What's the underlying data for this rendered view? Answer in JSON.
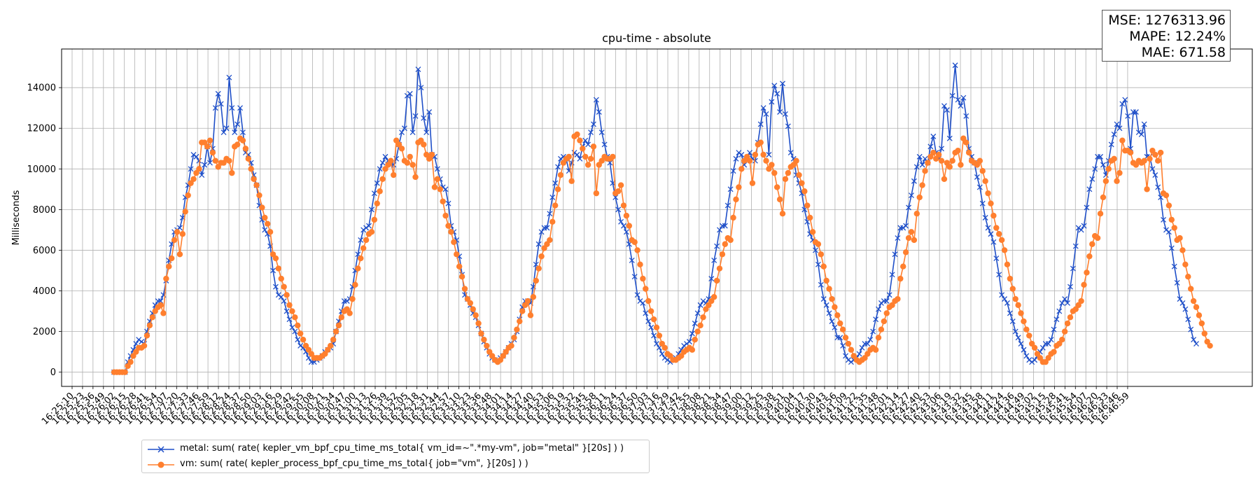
{
  "chart_data": {
    "type": "line",
    "title": "cpu-time - absolute",
    "ylabel": "Milliseconds",
    "xlabel": "",
    "ylim": [
      -700,
      15900
    ],
    "yticks": [
      0,
      2000,
      4000,
      6000,
      8000,
      10000,
      12000,
      14000
    ],
    "grid": true,
    "legend_position": "lower-left",
    "x_tick_labels": [
      "16:25:10",
      "16:25:23",
      "16:25:36",
      "16:25:49",
      "16:26:02",
      "16:26:15",
      "16:26:28",
      "16:26:41",
      "16:26:54",
      "16:27:07",
      "16:27:20",
      "16:27:33",
      "16:27:46",
      "16:27:59",
      "16:28:12",
      "16:28:24",
      "16:28:37",
      "16:28:50",
      "16:29:03",
      "16:29:16",
      "16:29:29",
      "16:29:42",
      "16:29:55",
      "16:30:08",
      "16:30:21",
      "16:30:34",
      "16:30:47",
      "16:31:00",
      "16:31:13",
      "16:31:26",
      "16:31:39",
      "16:31:52",
      "16:32:05",
      "16:32:18",
      "16:32:31",
      "16:32:44",
      "16:32:57",
      "16:33:10",
      "16:33:23",
      "16:33:36",
      "16:33:48",
      "16:34:01",
      "16:34:14",
      "16:34:27",
      "16:34:40",
      "16:34:53",
      "16:35:06",
      "16:35:19",
      "16:35:32",
      "16:35:45",
      "16:35:58",
      "16:36:11",
      "16:36:24",
      "16:36:37",
      "16:36:50",
      "16:37:03",
      "16:37:16",
      "16:37:29",
      "16:37:42",
      "16:37:55",
      "16:38:08",
      "16:38:21",
      "16:38:34",
      "16:38:47",
      "16:39:00",
      "16:39:12",
      "16:39:25",
      "16:39:38",
      "16:39:51",
      "16:40:04",
      "16:40:17",
      "16:40:30",
      "16:40:43",
      "16:40:56",
      "16:41:09",
      "16:41:22",
      "16:41:35",
      "16:41:48",
      "16:42:01",
      "16:42:14",
      "16:42:27",
      "16:42:40",
      "16:42:53",
      "16:43:06",
      "16:43:19",
      "16:43:32",
      "16:43:45",
      "16:43:58",
      "16:44:11",
      "16:44:24",
      "16:44:36",
      "16:44:49",
      "16:45:02",
      "16:45:15",
      "16:45:28",
      "16:45:41",
      "16:45:54",
      "16:46:07",
      "16:46:20",
      "16:46:33",
      "16:46:46",
      "16:46:59"
    ],
    "series": [
      {
        "name": "metal: sum( rate( kepler_vm_bpf_cpu_time_ms_total{ vm_id=~\".*my-vm\", job=\"metal\" }[20s] ) )",
        "color": "#1f4fc8",
        "marker": "x",
        "values": [
          0,
          0,
          0,
          0,
          0,
          500,
          800,
          1100,
          1400,
          1600,
          1500,
          1400,
          2000,
          2500,
          2900,
          3300,
          3500,
          3500,
          3800,
          4500,
          5500,
          6300,
          6900,
          7000,
          7100,
          7600,
          8600,
          9200,
          10000,
          10700,
          10600,
          10400,
          9700,
          10200,
          11100,
          10300,
          11000,
          13000,
          13700,
          13200,
          11800,
          12000,
          14500,
          13000,
          11800,
          12200,
          13000,
          11800,
          10800,
          10700,
          10300,
          9700,
          9200,
          8200,
          7500,
          7000,
          6800,
          6200,
          5000,
          4200,
          3800,
          3700,
          3500,
          3000,
          2600,
          2200,
          2000,
          1600,
          1300,
          1200,
          1000,
          700,
          500,
          500,
          600,
          700,
          800,
          1000,
          1100,
          1200,
          1400,
          2000,
          2500,
          3000,
          3500,
          3500,
          3600,
          4200,
          5000,
          5800,
          6500,
          7000,
          7100,
          7200,
          8000,
          8800,
          9300,
          10000,
          10300,
          10600,
          10400,
          10200,
          10200,
          10500,
          11200,
          11800,
          12000,
          13600,
          13700,
          11800,
          12600,
          14900,
          14000,
          12500,
          11800,
          12800,
          10700,
          10600,
          10000,
          9500,
          9100,
          9000,
          8300,
          7200,
          6900,
          6500,
          5700,
          4800,
          3800,
          3600,
          3300,
          2900,
          2700,
          2300,
          1900,
          1500,
          1200,
          900,
          700,
          600,
          600,
          700,
          800,
          1000,
          1200,
          1400,
          1600,
          2000,
          2600,
          3200,
          3500,
          3500,
          3400,
          4200,
          5300,
          6300,
          6900,
          7100,
          7100,
          7800,
          8600,
          9300,
          10100,
          10500,
          10600,
          10500,
          9900,
          10300,
          10800,
          10700,
          10500,
          11100,
          11400,
          11200,
          11800,
          12200,
          13400,
          12800,
          11800,
          11200,
          10600,
          10300,
          9300,
          8600,
          8000,
          7400,
          7200,
          6900,
          6300,
          5500,
          4700,
          3800,
          3500,
          3400,
          2900,
          2500,
          2200,
          1800,
          1400,
          1200,
          900,
          700,
          600,
          500,
          600,
          700,
          900,
          1100,
          1300,
          1400,
          1500,
          1900,
          2400,
          2900,
          3300,
          3500,
          3400,
          3600,
          4600,
          5500,
          6200,
          7000,
          7200,
          7200,
          8200,
          9000,
          9900,
          10500,
          10800,
          10700,
          10200,
          10400,
          10800,
          10500,
          10400,
          11300,
          12200,
          13000,
          12700,
          10700,
          13300,
          14100,
          13700,
          12800,
          14200,
          12700,
          12100,
          10800,
          10500,
          9700,
          9300,
          8800,
          8000,
          7400,
          6800,
          6500,
          6000,
          5300,
          4300,
          3600,
          3300,
          2900,
          2500,
          2200,
          1700,
          1700,
          1300,
          800,
          600,
          500,
          600,
          700,
          900,
          1200,
          1400,
          1400,
          1600,
          2000,
          2600,
          3100,
          3400,
          3500,
          3500,
          3800,
          4800,
          5800,
          6600,
          7100,
          7100,
          7200,
          8100,
          8700,
          9400,
          10100,
          10600,
          10200,
          10500,
          10300,
          11100,
          11600,
          10800,
          10500,
          11000,
          13100,
          12900,
          11500,
          13600,
          15100,
          13400,
          13100,
          13500,
          12600,
          11000,
          10600,
          10300,
          9600,
          9100,
          8300,
          7600,
          7100,
          6800,
          6400,
          5600,
          4800,
          3800,
          3600,
          3400,
          2900,
          2500,
          2000,
          1700,
          1400,
          1100,
          800,
          600,
          500,
          600,
          800,
          1000,
          1200,
          1400,
          1400,
          1600,
          2100,
          2600,
          3000,
          3400,
          3600,
          3400,
          4200,
          5100,
          6200,
          7100,
          7000,
          7200,
          8100,
          9000,
          9500,
          10000,
          10600,
          10600,
          10200,
          9700,
          10400,
          11200,
          11700,
          12200,
          12000,
          13200,
          13400,
          12600,
          11000,
          12800,
          12800,
          11800,
          11700,
          12200,
          10600,
          10600,
          10000,
          9700,
          9100,
          8600,
          7500,
          7000,
          6900,
          6100,
          5200,
          4400,
          3600,
          3400,
          3100,
          2600,
          2100,
          1600,
          1400
        ]
      },
      {
        "name": "vm: sum( rate( kepler_process_bpf_cpu_time_ms_total{ job=\"vm\", }[20s] ) )",
        "color": "#ff7f2e",
        "marker": "o",
        "values": [
          0,
          0,
          0,
          0,
          0,
          300,
          500,
          800,
          1000,
          1200,
          1200,
          1300,
          1800,
          2300,
          2700,
          3000,
          3200,
          3300,
          2900,
          4600,
          5200,
          5600,
          6500,
          6900,
          5800,
          6800,
          7900,
          8700,
          9300,
          9500,
          9800,
          10000,
          11300,
          11300,
          11100,
          11400,
          10800,
          10400,
          10100,
          10300,
          10300,
          10500,
          10400,
          9800,
          11100,
          11200,
          11500,
          11400,
          11000,
          10500,
          10000,
          9500,
          9200,
          8700,
          8100,
          7600,
          7300,
          6900,
          5800,
          5600,
          5100,
          4600,
          4200,
          3800,
          3300,
          3000,
          2700,
          2300,
          1900,
          1600,
          1300,
          1100,
          900,
          700,
          700,
          700,
          800,
          900,
          1100,
          1300,
          1600,
          2000,
          2300,
          2700,
          3000,
          3100,
          2900,
          3600,
          4300,
          5100,
          5600,
          6100,
          6500,
          6800,
          6900,
          7500,
          8300,
          8900,
          9500,
          10000,
          10200,
          10400,
          9700,
          11400,
          11200,
          11000,
          10400,
          10300,
          10600,
          10200,
          9600,
          11300,
          11400,
          11200,
          10700,
          10500,
          10700,
          9100,
          9500,
          9000,
          8400,
          7700,
          7200,
          6900,
          6400,
          5800,
          5200,
          4700,
          4100,
          3600,
          3400,
          3100,
          2800,
          2400,
          1900,
          1600,
          1300,
          1000,
          800,
          600,
          500,
          600,
          800,
          1000,
          1200,
          1300,
          1700,
          2100,
          2500,
          3000,
          3300,
          3500,
          2800,
          3700,
          4500,
          5100,
          5700,
          6100,
          6300,
          6500,
          7400,
          8200,
          9000,
          9700,
          10300,
          10500,
          10600,
          9400,
          11600,
          11700,
          11400,
          11000,
          10600,
          10200,
          10500,
          11100,
          8800,
          10200,
          10400,
          10600,
          10500,
          10500,
          10600,
          8800,
          8900,
          9200,
          8200,
          7700,
          7200,
          6500,
          6400,
          6000,
          5300,
          4600,
          4100,
          3500,
          3000,
          2600,
          2200,
          1800,
          1400,
          1200,
          900,
          800,
          600,
          600,
          700,
          800,
          1000,
          1100,
          1200,
          1100,
          1600,
          2000,
          2300,
          2700,
          3100,
          3300,
          3500,
          3700,
          4500,
          5100,
          5800,
          6300,
          6600,
          6500,
          7600,
          8500,
          9100,
          10000,
          10400,
          10600,
          10400,
          9300,
          10700,
          11200,
          11300,
          10700,
          10400,
          10000,
          10200,
          9800,
          9100,
          8500,
          7800,
          9500,
          9800,
          10100,
          10200,
          10400,
          9700,
          9300,
          8900,
          8200,
          7600,
          6900,
          6400,
          6300,
          5800,
          5200,
          4500,
          4100,
          3600,
          3200,
          2800,
          2400,
          2100,
          1700,
          1400,
          1100,
          800,
          600,
          500,
          600,
          700,
          900,
          1100,
          1200,
          1100,
          1700,
          2100,
          2500,
          2900,
          3200,
          3300,
          3500,
          3600,
          4600,
          5200,
          5900,
          6600,
          6900,
          6500,
          7800,
          8600,
          9200,
          9900,
          10300,
          10600,
          10800,
          10500,
          10700,
          10400,
          9500,
          10300,
          10100,
          10400,
          10800,
          10900,
          10200,
          11500,
          11300,
          10800,
          10400,
          10300,
          10200,
          10400,
          9900,
          9400,
          8800,
          8300,
          7700,
          7100,
          6800,
          6500,
          6000,
          5300,
          4600,
          4100,
          3600,
          3300,
          2900,
          2500,
          2100,
          1800,
          1400,
          1200,
          900,
          700,
          500,
          500,
          700,
          900,
          1000,
          1300,
          1400,
          1600,
          2000,
          2400,
          2700,
          3000,
          3100,
          3300,
          3500,
          4300,
          4900,
          5700,
          6300,
          6700,
          6600,
          7800,
          8600,
          9400,
          10000,
          10400,
          10500,
          9400,
          9800,
          11400,
          10900,
          10900,
          10800,
          10300,
          10200,
          10400,
          10300,
          10400,
          9000,
          10500,
          10900,
          10700,
          10400,
          10800,
          8800,
          8700,
          8200,
          7500,
          7100,
          6500,
          6600,
          6000,
          5300,
          4700,
          4100,
          3500,
          3200,
          2800,
          2400,
          1900,
          1500,
          1300
        ]
      }
    ]
  },
  "metrics": {
    "mse": "MSE: 1276313.96",
    "mape": "MAPE: 12.24%",
    "mae": "MAE: 671.58"
  }
}
